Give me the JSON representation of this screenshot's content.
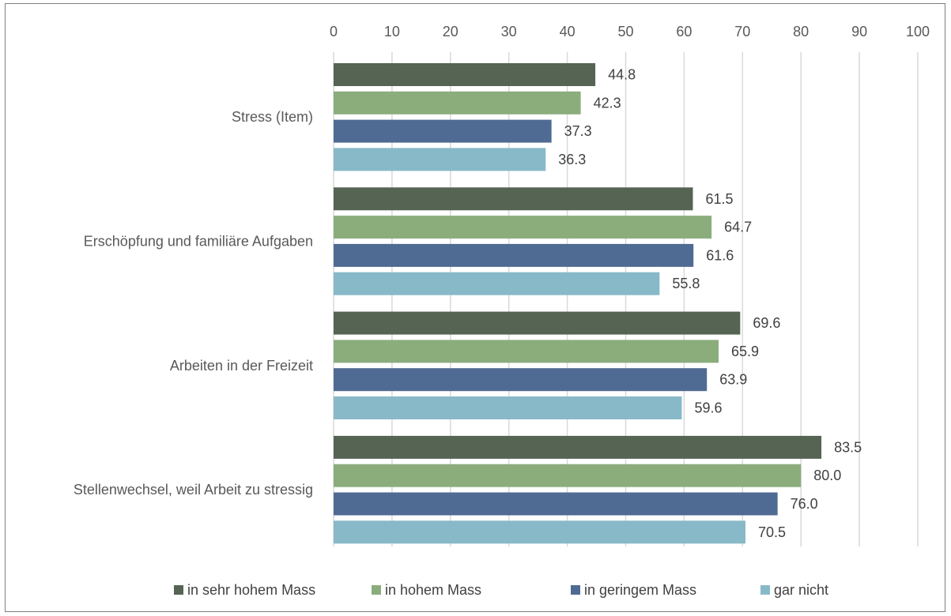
{
  "chart_data": {
    "type": "bar",
    "orientation": "horizontal",
    "categories": [
      "Stress (Item)",
      "Erschöpfung und familiäre Aufgaben",
      "Arbeiten in der Freizeit",
      "Stellenwechsel, weil Arbeit zu stressig"
    ],
    "series": [
      {
        "name": "in sehr hohem Mass",
        "color": "#556453",
        "values": [
          44.8,
          61.5,
          69.6,
          83.5
        ]
      },
      {
        "name": "in hohem Mass",
        "color": "#8bad7c",
        "values": [
          42.3,
          64.7,
          65.9,
          80.0
        ]
      },
      {
        "name": "in geringem Mass",
        "color": "#4f6b94",
        "values": [
          37.3,
          61.6,
          63.9,
          76.0
        ]
      },
      {
        "name": "gar nicht",
        "color": "#88b9c8",
        "values": [
          36.3,
          55.8,
          59.6,
          70.5
        ]
      }
    ],
    "xlim": [
      0,
      100
    ],
    "xticks": [
      0,
      10,
      20,
      30,
      40,
      50,
      60,
      70,
      80,
      90,
      100
    ],
    "x_axis_position": "top",
    "grid": true,
    "legend_position": "bottom",
    "data_labels": true,
    "title": "",
    "xlabel": "",
    "ylabel": ""
  }
}
